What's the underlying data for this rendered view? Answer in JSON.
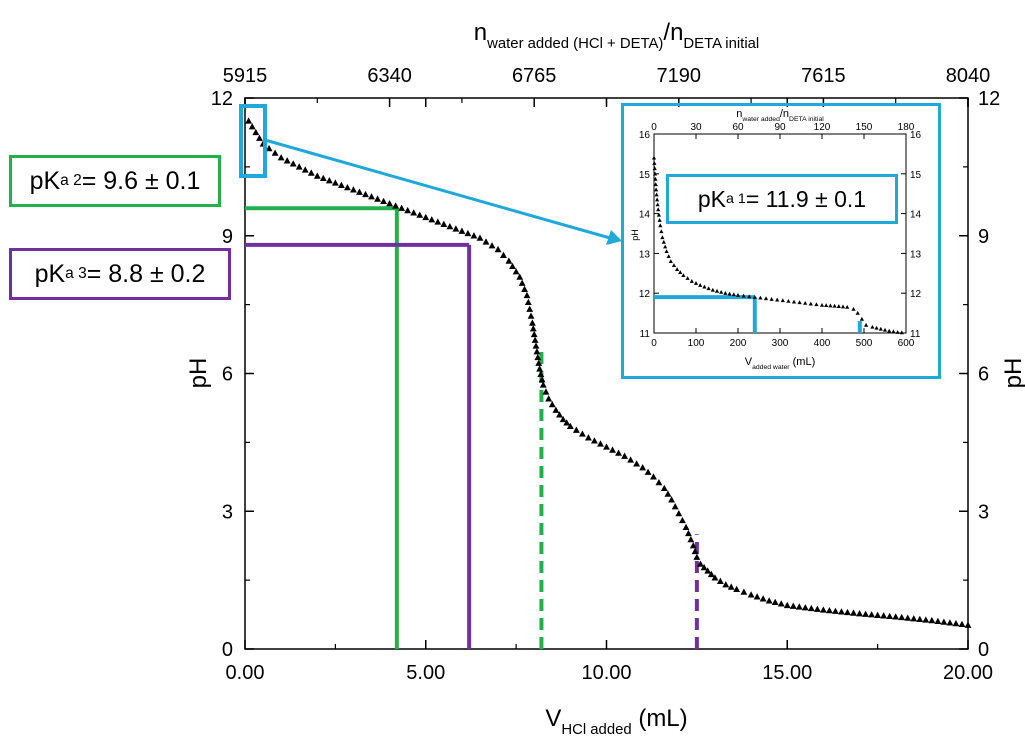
{
  "colors": {
    "green": "#22b04b",
    "purple": "#7030a0",
    "blue": "#1fa8d8",
    "marker": "#000000"
  },
  "labels": {
    "pka2": {
      "prefix": "pK",
      "sub": "a 2",
      "suffix": " = 9.6 ± 0.1"
    },
    "pka3": {
      "prefix": "pK",
      "sub": "a 3",
      "suffix": " = 8.8 ± 0.2"
    },
    "pka1": {
      "prefix": "pK",
      "sub": "a 1",
      "suffix": " = 11.9 ± 0.1"
    }
  },
  "chart_data": [
    {
      "type": "scatter",
      "marker": "triangle",
      "xlabel": {
        "main": "V",
        "sub": "HCl added",
        "unit": " (mL)"
      },
      "ylabel": "pH",
      "y2label": "pH",
      "top_axis_label": {
        "n1": "n",
        "sub1": "water added (HCl + DETA)",
        "sep": "/",
        "n2": "n",
        "sub2": "DETA initial"
      },
      "xlim": [
        0,
        20
      ],
      "ylim": [
        0,
        12
      ],
      "x_ticks": [
        "0.00",
        "5.00",
        "10.00",
        "15.00",
        "20.00"
      ],
      "x_tick_values": [
        0,
        5,
        10,
        15,
        20
      ],
      "y_ticks": [
        "0",
        "3",
        "6",
        "9",
        "12"
      ],
      "y_tick_values": [
        0,
        3,
        6,
        9,
        12
      ],
      "top_ticks": [
        "5915",
        "6340",
        "6765",
        "7190",
        "7615",
        "8040"
      ],
      "grid": false,
      "series": [
        {
          "x": [
            0.1,
            0.5,
            1.0,
            1.5,
            2.0,
            2.5,
            3.0,
            3.5,
            4.0,
            4.5,
            5.0,
            5.5,
            6.0,
            6.5,
            7.0,
            7.3,
            7.6,
            7.8,
            7.95,
            8.05,
            8.15,
            8.25,
            8.4,
            8.6,
            8.8,
            9.0,
            9.5,
            10.0,
            10.5,
            11.0,
            11.3,
            11.6,
            11.8,
            12.0,
            12.2,
            12.4,
            12.5,
            12.6,
            12.8,
            13.0,
            13.3,
            13.6,
            14.0,
            14.5,
            15.0,
            16.0,
            17.0,
            18.0,
            19.0,
            20.0
          ],
          "y": [
            11.5,
            11.0,
            10.7,
            10.5,
            10.3,
            10.15,
            10.0,
            9.85,
            9.7,
            9.55,
            9.4,
            9.25,
            9.1,
            8.95,
            8.7,
            8.45,
            8.1,
            7.7,
            7.1,
            6.6,
            6.1,
            5.75,
            5.45,
            5.2,
            5.0,
            4.85,
            4.6,
            4.4,
            4.2,
            3.95,
            3.75,
            3.5,
            3.25,
            2.95,
            2.65,
            2.25,
            2.0,
            1.85,
            1.7,
            1.55,
            1.4,
            1.3,
            1.18,
            1.05,
            0.95,
            0.85,
            0.77,
            0.7,
            0.62,
            0.52
          ]
        }
      ],
      "equivalence_lines": [
        {
          "x": 4.2,
          "y": 9.6,
          "color": "green",
          "style": "solid"
        },
        {
          "x": 6.2,
          "y": 8.8,
          "color": "purple",
          "style": "solid"
        },
        {
          "x": 8.2,
          "y": 6.6,
          "color": "green",
          "style": "dashed"
        },
        {
          "x": 12.5,
          "y": 2.5,
          "color": "purple",
          "style": "dashed"
        }
      ]
    },
    {
      "type": "scatter",
      "marker": "triangle",
      "xlabel": {
        "main": "V",
        "sub": "added water",
        "unit": " (mL)"
      },
      "ylabel": "pH",
      "top_axis_label": {
        "n1": "n",
        "sub1": "water added",
        "sep": "/",
        "n2": "n",
        "sub2": "DETA initial"
      },
      "xlim": [
        0,
        600
      ],
      "ylim": [
        11,
        16
      ],
      "x_ticks": [
        "0",
        "100",
        "200",
        "300",
        "400",
        "500",
        "600"
      ],
      "x_tick_values": [
        0,
        100,
        200,
        300,
        400,
        500,
        600
      ],
      "y_ticks": [
        "11",
        "12",
        "13",
        "14",
        "15",
        "16"
      ],
      "y_tick_values": [
        11,
        12,
        13,
        14,
        15,
        16
      ],
      "top_ticks": [
        "0",
        "30",
        "60",
        "90",
        "120",
        "150",
        "180"
      ],
      "grid": false,
      "series": [
        {
          "x": [
            0,
            5,
            10,
            15,
            20,
            30,
            40,
            55,
            70,
            90,
            110,
            140,
            170,
            200,
            240,
            280,
            320,
            360,
            400,
            430,
            460,
            475,
            485,
            495,
            505,
            520,
            540,
            560,
            580,
            600
          ],
          "y": [
            15.4,
            14.6,
            14.1,
            13.7,
            13.4,
            13.05,
            12.8,
            12.6,
            12.45,
            12.3,
            12.2,
            12.08,
            12.0,
            11.95,
            11.9,
            11.85,
            11.8,
            11.75,
            11.7,
            11.68,
            11.65,
            11.6,
            11.5,
            11.35,
            11.2,
            11.15,
            11.1,
            11.05,
            11.02,
            11.0
          ]
        }
      ],
      "equivalence_lines": [
        {
          "x": 240,
          "y": 11.9,
          "color": "blue",
          "style": "solid"
        },
        {
          "x": 490,
          "y": 11.3,
          "color": "blue",
          "style": "solid"
        }
      ]
    }
  ]
}
